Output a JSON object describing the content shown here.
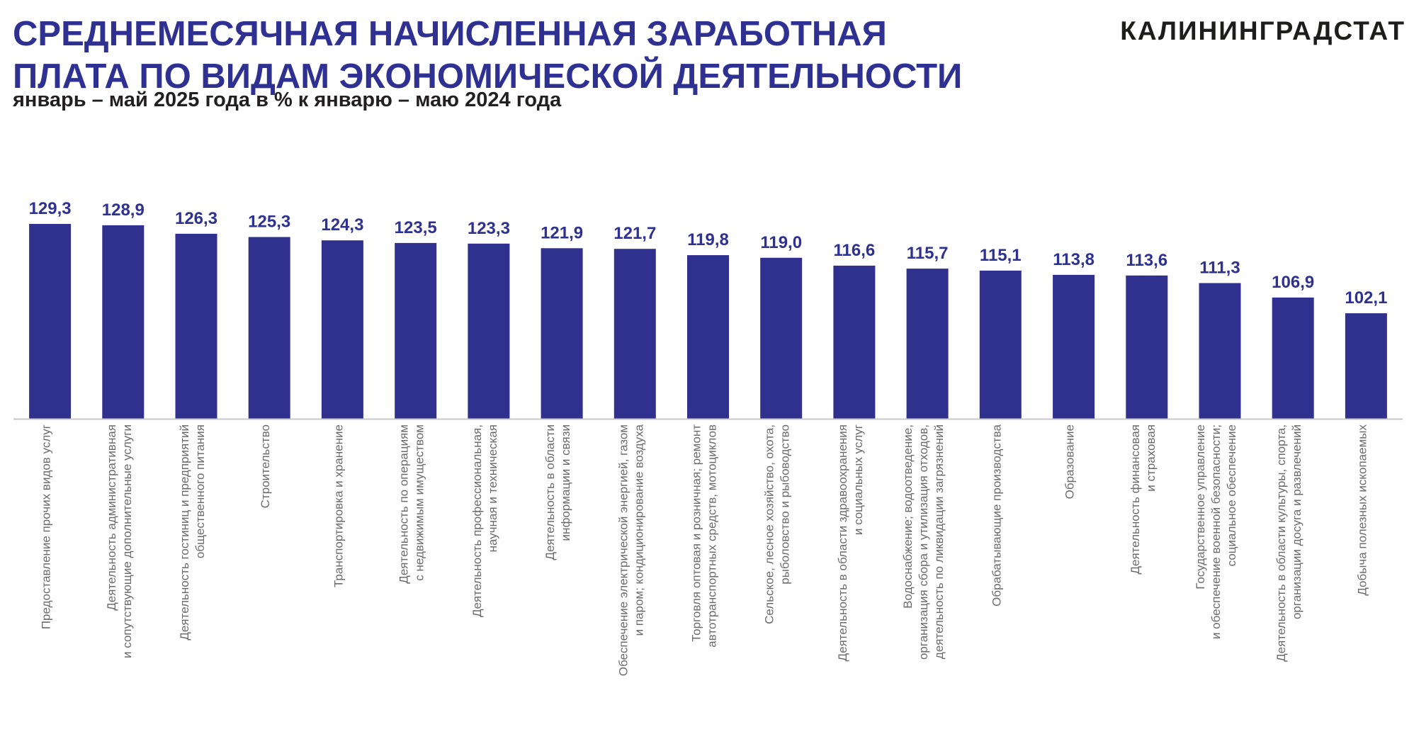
{
  "header": {
    "title_line1": "СРЕДНЕМЕСЯЧНАЯ НАЧИСЛЕННАЯ ЗАРАБОТНАЯ",
    "title_line2": "ПЛАТА ПО ВИДАМ ЭКОНОМИЧЕСКОЙ ДЕЯТЕЛЬНОСТИ",
    "subtitle": "январь – май 2025 года в % к январю – маю 2024 года",
    "brand": "КАЛИНИНГРАДСТАТ"
  },
  "colors": {
    "bar": "#30308E",
    "value_label": "#2E3192",
    "category_label": "#6B6B6B",
    "axis": "#C8C8C8"
  },
  "chart_data": {
    "type": "bar",
    "title": "СРЕДНЕМЕСЯЧНАЯ НАЧИСЛЕННАЯ ЗАРАБОТНАЯ ПЛАТА ПО ВИДАМ ЭКОНОМИЧЕСКОЙ ДЕЯТЕЛЬНОСТИ",
    "subtitle": "январь – май 2025 года в % к январю – маю 2024 года",
    "ylim": [
      70,
      135
    ],
    "grid": false,
    "categories": [
      [
        "Предоставление прочих видов услуг"
      ],
      [
        "Деятельность административная",
        "и сопутствующие дополнительные услуги"
      ],
      [
        "Деятельность гостиниц и предприятий",
        "общественного питания"
      ],
      [
        "Строительство"
      ],
      [
        "Транспортировка и хранение"
      ],
      [
        "Деятельность по операциям",
        "с недвижимым имуществом"
      ],
      [
        "Деятельность профессиональная,",
        "научная и техническая"
      ],
      [
        "Деятельность в области",
        "информации и связи"
      ],
      [
        "Обеспечение электрической энергией, газом",
        "и паром; кондиционирование воздуха"
      ],
      [
        "Торговля оптовая и розничная; ремонт",
        "автотранспортных средств, мотоциклов"
      ],
      [
        "Сельское, лесное хозяйство, охота,",
        "рыболовство и рыбоводство"
      ],
      [
        "Деятельность в области здравоохранения",
        "и социальных услуг"
      ],
      [
        "Водоснабжение; водоотведение,",
        "организация сбора и утилизация отходов,",
        "деятельность по ликвидации загрязнений"
      ],
      [
        "Обрабатывающие производства"
      ],
      [
        "Образование"
      ],
      [
        "Деятельность финансовая",
        "и страховая"
      ],
      [
        "Государственное управление",
        "и обеспечение военной безопасности;",
        "социальное обеспечение"
      ],
      [
        "Деятельность в области культуры, спорта,",
        "организации досуга и развлечений"
      ],
      [
        "Добыча полезных ископаемых"
      ]
    ],
    "values": [
      129.3,
      128.9,
      126.3,
      125.3,
      124.3,
      123.5,
      123.3,
      121.9,
      121.7,
      119.8,
      119.0,
      116.6,
      115.7,
      115.1,
      113.8,
      113.6,
      111.3,
      106.9,
      102.1
    ],
    "value_labels": [
      "129,3",
      "128,9",
      "126,3",
      "125,3",
      "124,3",
      "123,5",
      "123,3",
      "121,9",
      "121,7",
      "119,8",
      "119,0",
      "116,6",
      "115,7",
      "115,1",
      "113,8",
      "113,6",
      "111,3",
      "106,9",
      "102,1"
    ]
  }
}
